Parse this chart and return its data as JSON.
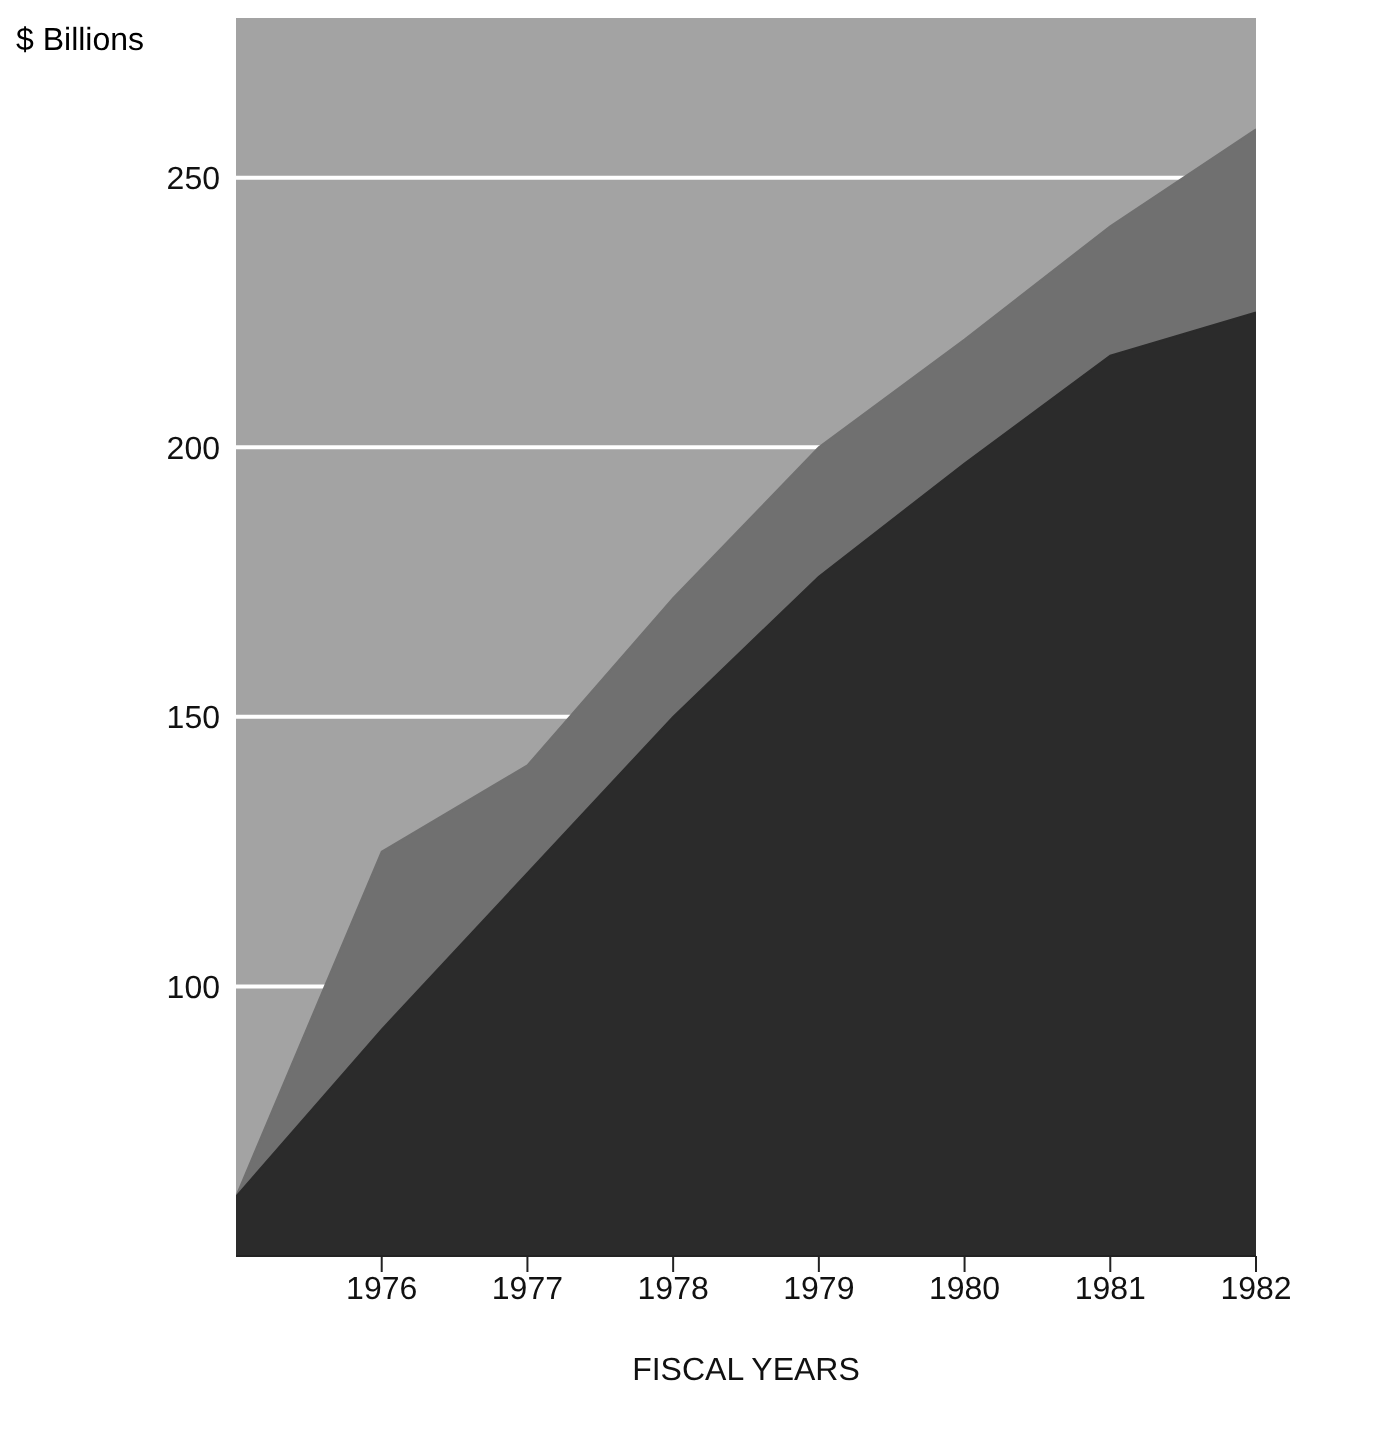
{
  "chart_data": {
    "type": "area",
    "ylabel": "$ Billions",
    "xlabel": "FISCAL YEARS",
    "x": [
      1975,
      1976,
      1977,
      1978,
      1979,
      1980,
      1981,
      1982
    ],
    "series": [
      {
        "color": "#707070",
        "values": [
          61,
          125,
          141,
          172,
          200,
          220,
          241,
          259
        ]
      },
      {
        "color": "#2b2b2b",
        "values": [
          61,
          92,
          121,
          150,
          176,
          197,
          217,
          225
        ]
      }
    ],
    "xlim": [
      1975,
      1982
    ],
    "xticks": [
      1976,
      1977,
      1978,
      1979,
      1980,
      1981,
      1982
    ],
    "ylim": [
      50,
      280
    ],
    "yticks": [
      100,
      150,
      200,
      250
    ],
    "grid": "y",
    "legend": false
  }
}
